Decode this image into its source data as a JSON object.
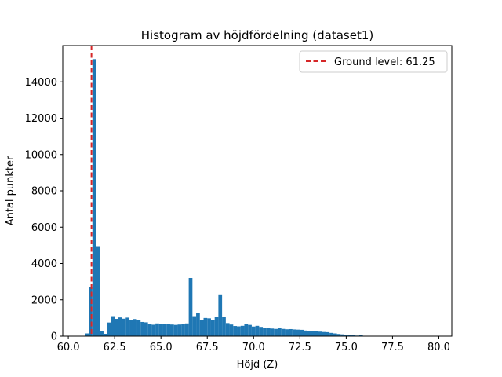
{
  "chart_data": {
    "type": "bar",
    "title": "Histogram av höjdfördelning (dataset1)",
    "xlabel": "Höjd (Z)",
    "ylabel": "Antal punkter",
    "xlim": [
      59.7,
      80.7
    ],
    "ylim": [
      0,
      16000
    ],
    "xticks": [
      60.0,
      62.5,
      65.0,
      67.5,
      70.0,
      72.5,
      75.0,
      77.5,
      80.0
    ],
    "xtick_labels": [
      "60.0",
      "62.5",
      "65.0",
      "67.5",
      "70.0",
      "72.5",
      "75.0",
      "77.5",
      "80.0"
    ],
    "yticks": [
      0,
      2000,
      4000,
      6000,
      8000,
      10000,
      12000,
      14000
    ],
    "ytick_labels": [
      "0",
      "2000",
      "4000",
      "6000",
      "8000",
      "10000",
      "12000",
      "14000"
    ],
    "bin_width": 0.2,
    "bin_start": 60.7,
    "values": [
      20,
      150,
      2700,
      15250,
      4950,
      300,
      130,
      750,
      1100,
      950,
      1030,
      960,
      1020,
      880,
      940,
      900,
      780,
      760,
      690,
      630,
      700,
      680,
      650,
      660,
      640,
      620,
      640,
      650,
      700,
      3200,
      1100,
      1270,
      890,
      1000,
      980,
      880,
      1050,
      2300,
      1070,
      720,
      640,
      560,
      540,
      570,
      660,
      620,
      530,
      570,
      510,
      470,
      460,
      420,
      400,
      440,
      400,
      380,
      390,
      370,
      360,
      350,
      310,
      280,
      270,
      260,
      250,
      230,
      220,
      180,
      150,
      120,
      100,
      80,
      60,
      70,
      30,
      60,
      20,
      10,
      10,
      0,
      0,
      0,
      0,
      0,
      0,
      0,
      0,
      0,
      0,
      0,
      0,
      0,
      0,
      0,
      0,
      10
    ],
    "bar_color": "#1f77b4",
    "reference_line": {
      "x": 61.25,
      "label": "Ground level: 61.25",
      "color": "#d62728",
      "style": "dashed"
    },
    "legend": {
      "placement": "upper right",
      "entries": [
        "Ground level: 61.25"
      ]
    },
    "grid": false
  }
}
